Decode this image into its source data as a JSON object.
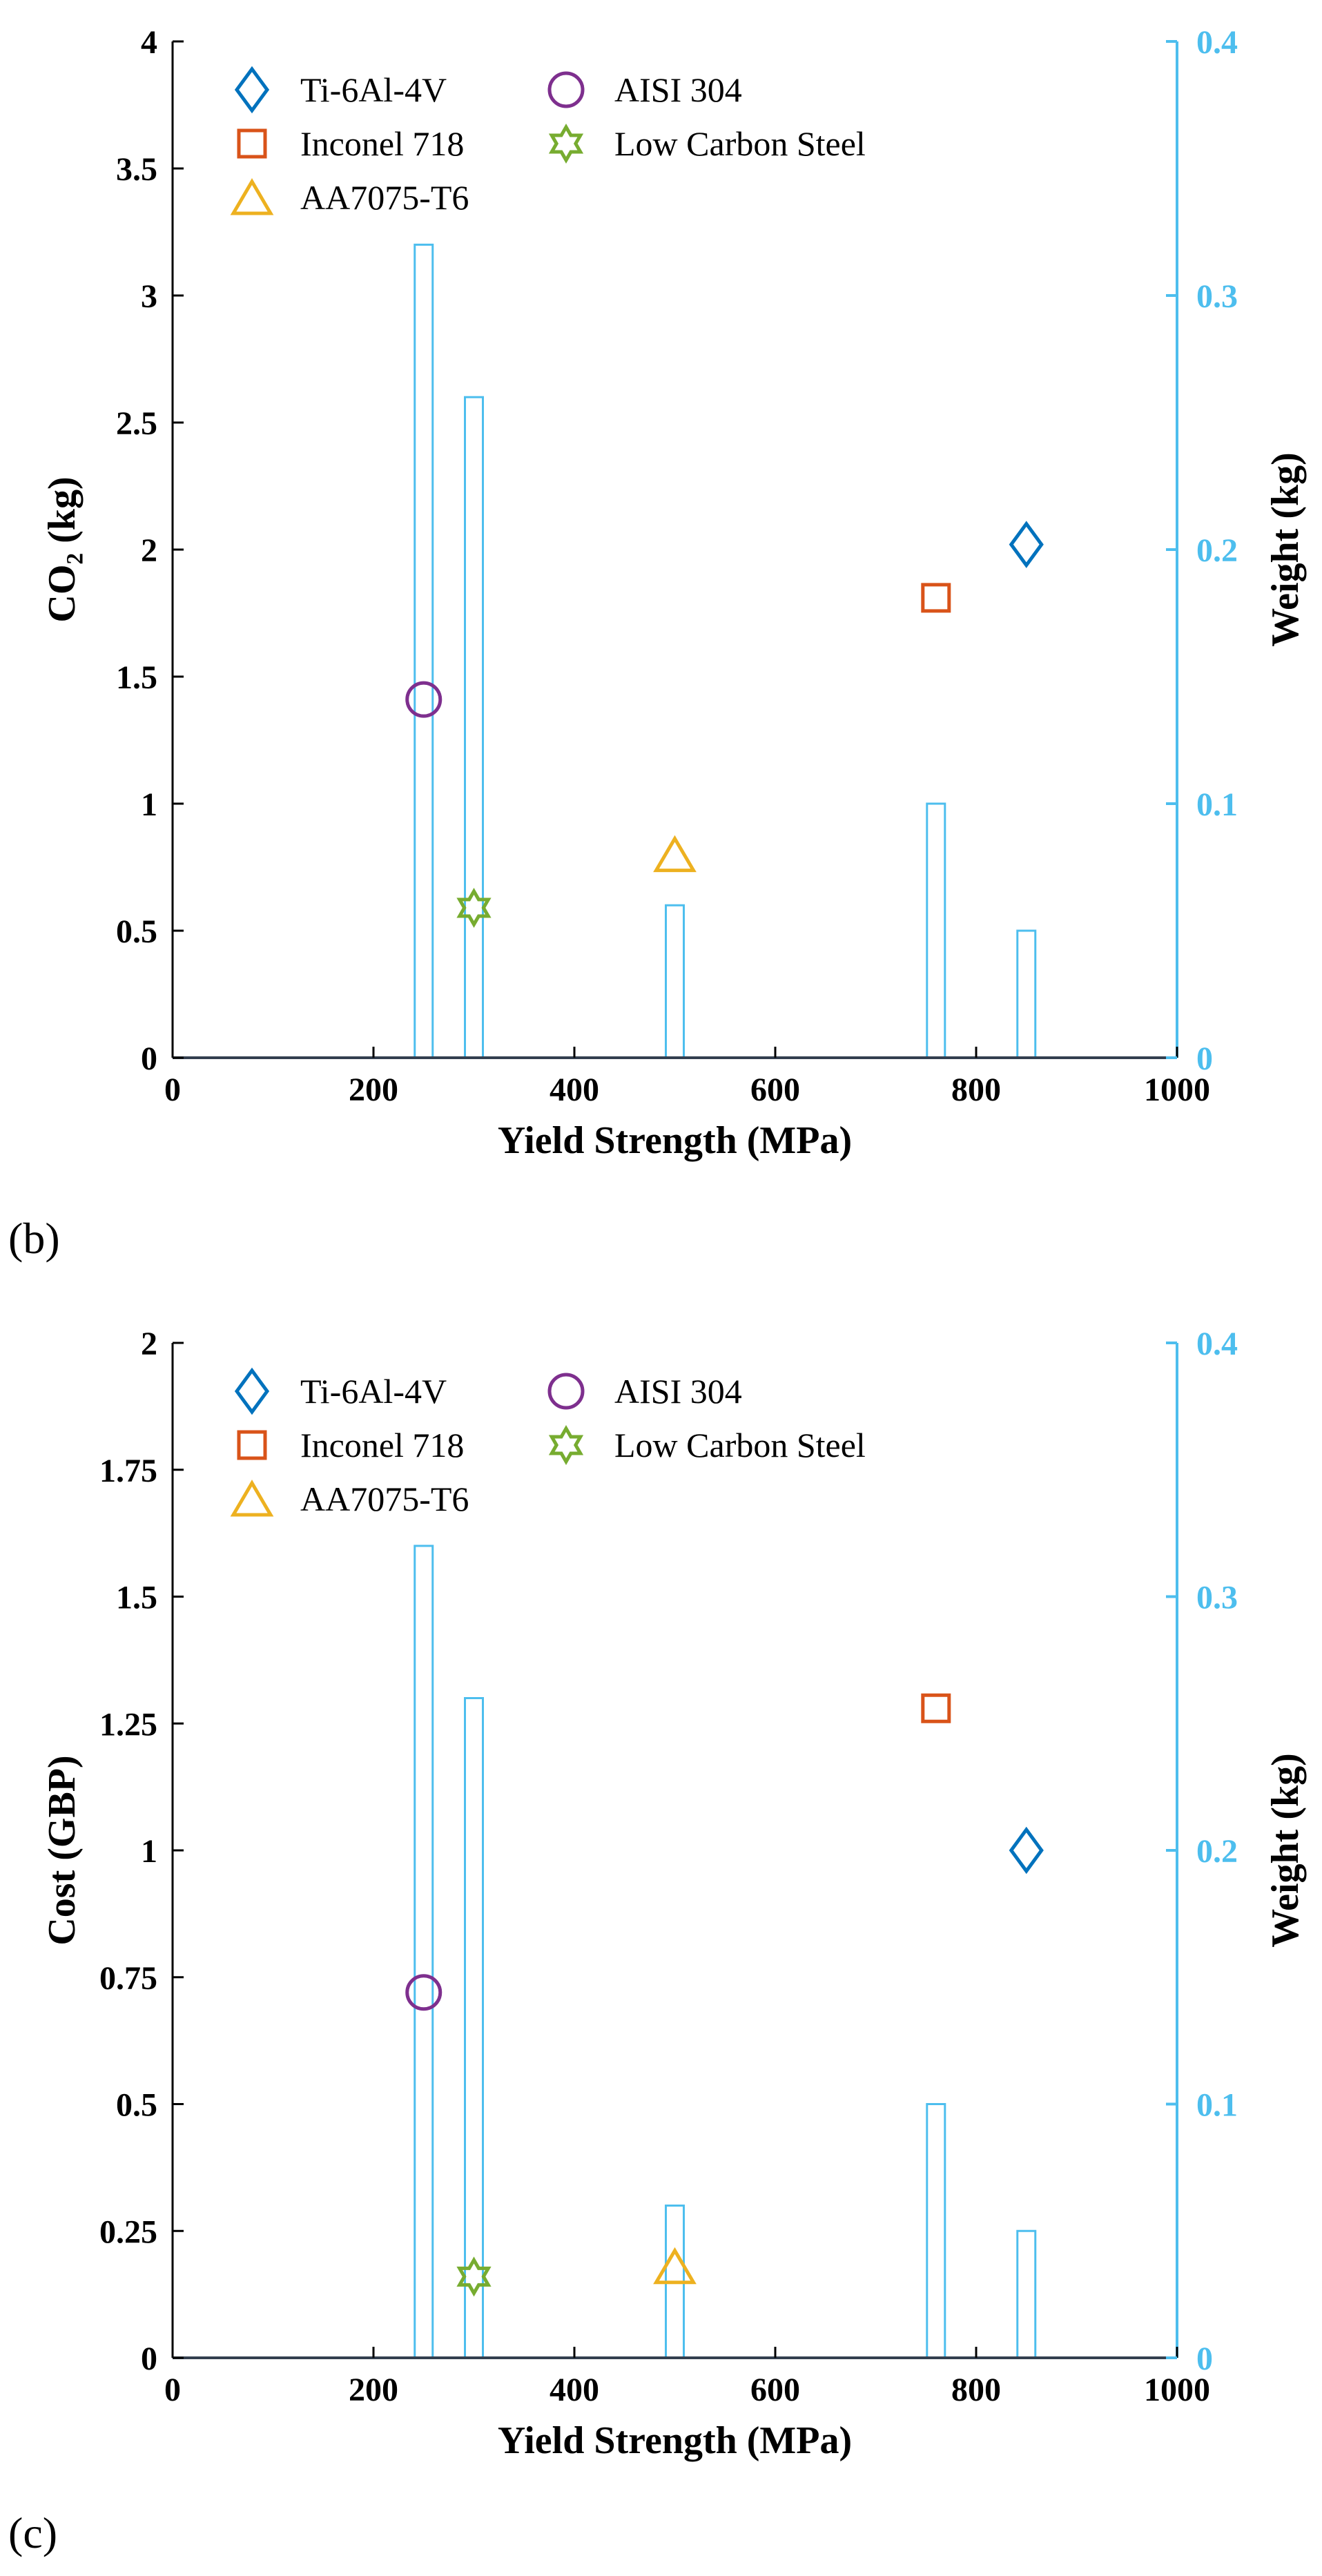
{
  "chart_data": [
    {
      "type": "scatter",
      "panel_label": "(b)",
      "xlabel": "Yield Strength (MPa)",
      "ylabel_left": "CO₂ (kg)",
      "ylabel_right": "Weight (kg)",
      "xlim": [
        0,
        1000
      ],
      "ylim_left": [
        0,
        4
      ],
      "ylim_right": [
        0,
        0.4
      ],
      "xticks": [
        "0",
        "200",
        "400",
        "600",
        "800",
        "1000"
      ],
      "yticks_left": [
        "0",
        "0.5",
        "1",
        "1.5",
        "2",
        "2.5",
        "3",
        "3.5",
        "4"
      ],
      "yticks_right": [
        "0",
        "0.1",
        "0.2",
        "0.3",
        "0.4"
      ],
      "grid": false,
      "legend_position": "top-left",
      "series": [
        {
          "name": "Ti-6Al-4V",
          "marker": "diamond",
          "color": "#0072BD",
          "x": 850,
          "y": 2.02
        },
        {
          "name": "Inconel 718",
          "marker": "square",
          "color": "#D95319",
          "x": 760,
          "y": 1.81
        },
        {
          "name": "AA7075-T6",
          "marker": "triangle",
          "color": "#EDB120",
          "x": 500,
          "y": 0.8
        },
        {
          "name": "AISI 304",
          "marker": "circle",
          "color": "#7E2F8E",
          "x": 250,
          "y": 1.41
        },
        {
          "name": "Low Carbon Steel",
          "marker": "hexagram",
          "color": "#77AC30",
          "x": 300,
          "y": 0.59
        }
      ],
      "weight_bars": {
        "axis": "right",
        "color": "#4DBEEE",
        "x": [
          250,
          300,
          500,
          760,
          850
        ],
        "values": [
          0.32,
          0.26,
          0.06,
          0.1,
          0.05
        ]
      }
    },
    {
      "type": "scatter",
      "panel_label": "(c)",
      "xlabel": "Yield Strength (MPa)",
      "ylabel_left": "Cost (GBP)",
      "ylabel_right": "Weight (kg)",
      "xlim": [
        0,
        1000
      ],
      "ylim_left": [
        0,
        2
      ],
      "ylim_right": [
        0,
        0.4
      ],
      "xticks": [
        "0",
        "200",
        "400",
        "600",
        "800",
        "1000"
      ],
      "yticks_left": [
        "0",
        "0.25",
        "0.5",
        "0.75",
        "1",
        "1.25",
        "1.5",
        "1.75",
        "2"
      ],
      "yticks_right": [
        "0",
        "0.1",
        "0.2",
        "0.3",
        "0.4"
      ],
      "grid": false,
      "legend_position": "top-left",
      "series": [
        {
          "name": "Ti-6Al-4V",
          "marker": "diamond",
          "color": "#0072BD",
          "x": 850,
          "y": 1.0
        },
        {
          "name": "Inconel 718",
          "marker": "square",
          "color": "#D95319",
          "x": 760,
          "y": 1.28
        },
        {
          "name": "AA7075-T6",
          "marker": "triangle",
          "color": "#EDB120",
          "x": 500,
          "y": 0.18
        },
        {
          "name": "AISI 304",
          "marker": "circle",
          "color": "#7E2F8E",
          "x": 250,
          "y": 0.72
        },
        {
          "name": "Low Carbon Steel",
          "marker": "hexagram",
          "color": "#77AC30",
          "x": 300,
          "y": 0.16
        }
      ],
      "weight_bars": {
        "axis": "right",
        "color": "#4DBEEE",
        "x": [
          250,
          300,
          500,
          760,
          850
        ],
        "values": [
          0.32,
          0.26,
          0.06,
          0.1,
          0.05
        ]
      }
    }
  ]
}
